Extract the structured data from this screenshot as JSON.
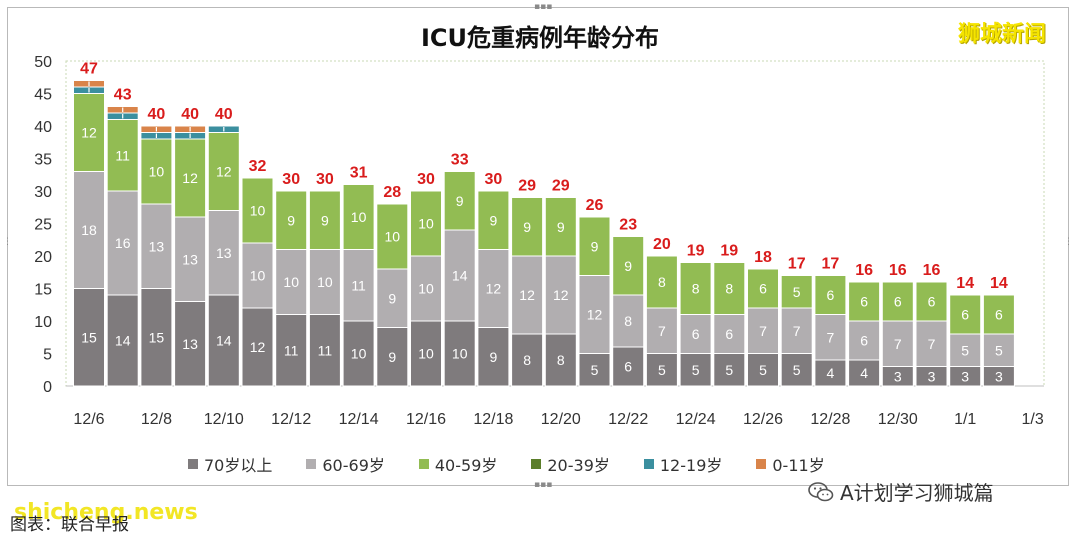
{
  "chart_data": {
    "type": "bar",
    "stacked": true,
    "title": "ICU危重病例年龄分布",
    "x_tick_labels": [
      "12/6",
      "12/8",
      "12/10",
      "12/12",
      "12/14",
      "12/16",
      "12/18",
      "12/20",
      "12/22",
      "12/24",
      "12/26",
      "12/28",
      "12/30",
      "1/1",
      "1/3"
    ],
    "ylim": [
      0,
      50
    ],
    "yticks": [
      0,
      5,
      10,
      15,
      20,
      25,
      30,
      35,
      40,
      45,
      50
    ],
    "grid": false,
    "legend_position": "bottom",
    "categories": [
      "12/6",
      "12/7",
      "12/8",
      "12/9",
      "12/10",
      "12/11",
      "12/12",
      "12/13",
      "12/14",
      "12/15",
      "12/16",
      "12/17",
      "12/18",
      "12/19",
      "12/20",
      "12/21",
      "12/22",
      "12/23",
      "12/24",
      "12/25",
      "12/26",
      "12/27",
      "12/28",
      "12/29",
      "12/30",
      "12/31",
      "1/1",
      "1/2"
    ],
    "series": [
      {
        "name": "70岁以上",
        "color": "#7f7b7d",
        "values": [
          15,
          14,
          15,
          13,
          14,
          12,
          11,
          11,
          10,
          9,
          10,
          10,
          9,
          8,
          8,
          5,
          6,
          5,
          5,
          5,
          5,
          5,
          4,
          4,
          3,
          3,
          3,
          3
        ]
      },
      {
        "name": "60-69岁",
        "color": "#b1aeb0",
        "values": [
          18,
          16,
          13,
          13,
          13,
          10,
          10,
          10,
          11,
          9,
          10,
          14,
          12,
          12,
          12,
          12,
          8,
          7,
          6,
          6,
          7,
          7,
          7,
          6,
          7,
          7,
          5,
          5
        ]
      },
      {
        "name": "40-59岁",
        "color": "#92bc53",
        "values": [
          12,
          11,
          10,
          12,
          12,
          10,
          9,
          9,
          10,
          10,
          10,
          9,
          9,
          9,
          9,
          9,
          9,
          8,
          8,
          8,
          6,
          5,
          6,
          6,
          6,
          6,
          6,
          6
        ]
      },
      {
        "name": "20-39岁",
        "color": "#5b7e2a",
        "values": [
          0,
          0,
          0,
          0,
          0,
          0,
          0,
          0,
          0,
          0,
          0,
          0,
          0,
          0,
          0,
          0,
          0,
          0,
          0,
          0,
          0,
          0,
          0,
          0,
          0,
          0,
          0,
          0
        ]
      },
      {
        "name": "12-19岁",
        "color": "#3b8f9f",
        "values": [
          1,
          1,
          1,
          1,
          1,
          0,
          0,
          0,
          0,
          0,
          0,
          0,
          0,
          0,
          0,
          0,
          0,
          0,
          0,
          0,
          0,
          0,
          0,
          0,
          0,
          0,
          0,
          0
        ]
      },
      {
        "name": "0-11岁",
        "color": "#d9844a",
        "values": [
          1,
          1,
          1,
          1,
          0,
          0,
          0,
          0,
          0,
          0,
          0,
          0,
          0,
          0,
          0,
          0,
          0,
          0,
          0,
          0,
          0,
          0,
          0,
          0,
          0,
          0,
          0,
          0
        ]
      }
    ],
    "totals": [
      47,
      43,
      40,
      40,
      40,
      32,
      30,
      30,
      31,
      28,
      30,
      33,
      30,
      29,
      29,
      26,
      23,
      20,
      19,
      19,
      18,
      17,
      17,
      16,
      16,
      16,
      14,
      14
    ],
    "total_color": "#d91c1c"
  },
  "brand": "狮城新闻",
  "wechat_label": "A计划学习狮城篇",
  "caption": "图表：联合早报",
  "watermark": "shicheng.news"
}
